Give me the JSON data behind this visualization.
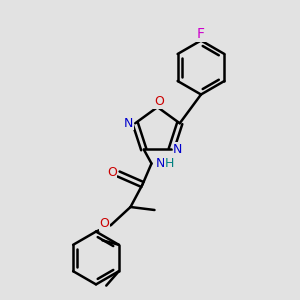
{
  "bg_color": "#e2e2e2",
  "bond_color": "#000000",
  "bond_width": 1.8,
  "N_color": "#0000cc",
  "O_color": "#cc0000",
  "F_color": "#cc00cc",
  "H_color": "#008080",
  "font_size": 9,
  "fig_size": [
    3.0,
    3.0
  ],
  "dpi": 100,
  "xlim": [
    0,
    10
  ],
  "ylim": [
    0,
    10
  ]
}
